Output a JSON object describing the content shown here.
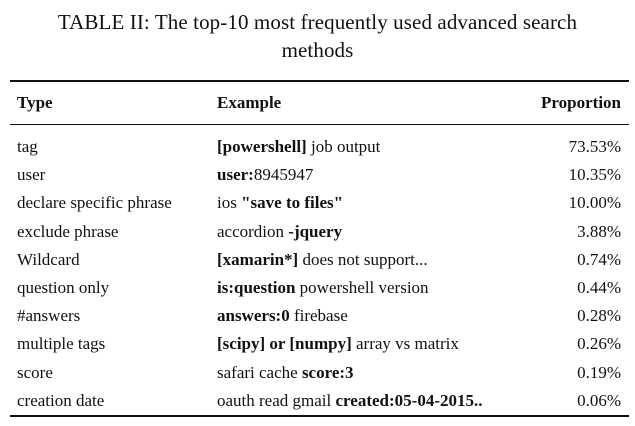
{
  "caption": {
    "line1": "TABLE II: The top-10 most frequently used advanced search",
    "line2": "methods"
  },
  "table": {
    "headers": {
      "type": "Type",
      "example": "Example",
      "proportion": "Proportion"
    },
    "rows": [
      {
        "type": "tag",
        "example": [
          {
            "text": "[powershell]",
            "bold": true
          },
          {
            "text": " job output",
            "bold": false
          }
        ],
        "proportion": "73.53%"
      },
      {
        "type": "user",
        "example": [
          {
            "text": "user:",
            "bold": true
          },
          {
            "text": "8945947",
            "bold": false
          }
        ],
        "proportion": "10.35%"
      },
      {
        "type": "declare specific phrase",
        "example": [
          {
            "text": "ios ",
            "bold": false
          },
          {
            "text": "\"save to files\"",
            "bold": true
          }
        ],
        "proportion": "10.00%"
      },
      {
        "type": "exclude phrase",
        "example": [
          {
            "text": "accordion ",
            "bold": false
          },
          {
            "text": "-jquery",
            "bold": true
          }
        ],
        "proportion": "3.88%"
      },
      {
        "type": "Wildcard",
        "example": [
          {
            "text": "[xamarin*]",
            "bold": true
          },
          {
            "text": " does not support...",
            "bold": false
          }
        ],
        "proportion": "0.74%"
      },
      {
        "type": "question only",
        "example": [
          {
            "text": "is:question",
            "bold": true
          },
          {
            "text": " powershell version",
            "bold": false
          }
        ],
        "proportion": "0.44%"
      },
      {
        "type": "#answers",
        "example": [
          {
            "text": "answers:0",
            "bold": true
          },
          {
            "text": " firebase",
            "bold": false
          }
        ],
        "proportion": "0.28%"
      },
      {
        "type": "multiple tags",
        "example": [
          {
            "text": "[scipy] or [numpy]",
            "bold": true
          },
          {
            "text": " array vs matrix",
            "bold": false
          }
        ],
        "proportion": "0.26%"
      },
      {
        "type": "score",
        "example": [
          {
            "text": "safari cache ",
            "bold": false
          },
          {
            "text": "score:3",
            "bold": true
          }
        ],
        "proportion": "0.19%"
      },
      {
        "type": "creation date",
        "example": [
          {
            "text": "oauth read gmail ",
            "bold": false
          },
          {
            "text": "created:05-04-2015..",
            "bold": true
          }
        ],
        "proportion": "0.06%"
      }
    ]
  }
}
